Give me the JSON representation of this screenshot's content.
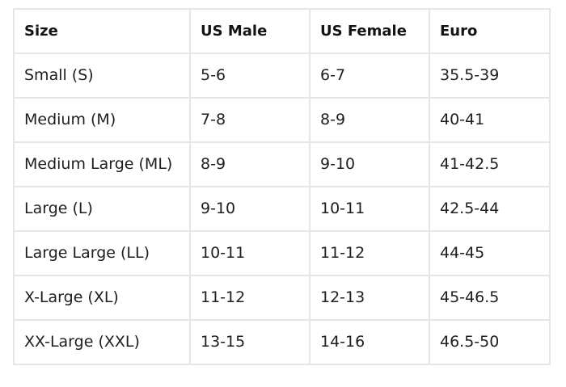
{
  "table": {
    "headers": [
      "Size",
      "US Male",
      "US Female",
      "Euro"
    ],
    "rows": [
      [
        "Small (S)",
        "5-6",
        "6-7",
        "35.5-39"
      ],
      [
        "Medium (M)",
        "7-8",
        "8-9",
        "40-41"
      ],
      [
        "Medium Large (ML)",
        "8-9",
        "9-10",
        "41-42.5"
      ],
      [
        "Large (L)",
        "9-10",
        "10-11",
        "42.5-44"
      ],
      [
        "Large Large (LL)",
        "10-11",
        "11-12",
        "44-45"
      ],
      [
        "X-Large (XL)",
        "11-12",
        "12-13",
        "45-46.5"
      ],
      [
        "XX-Large (XXL)",
        "13-15",
        "14-16",
        "46.5-50"
      ]
    ]
  }
}
